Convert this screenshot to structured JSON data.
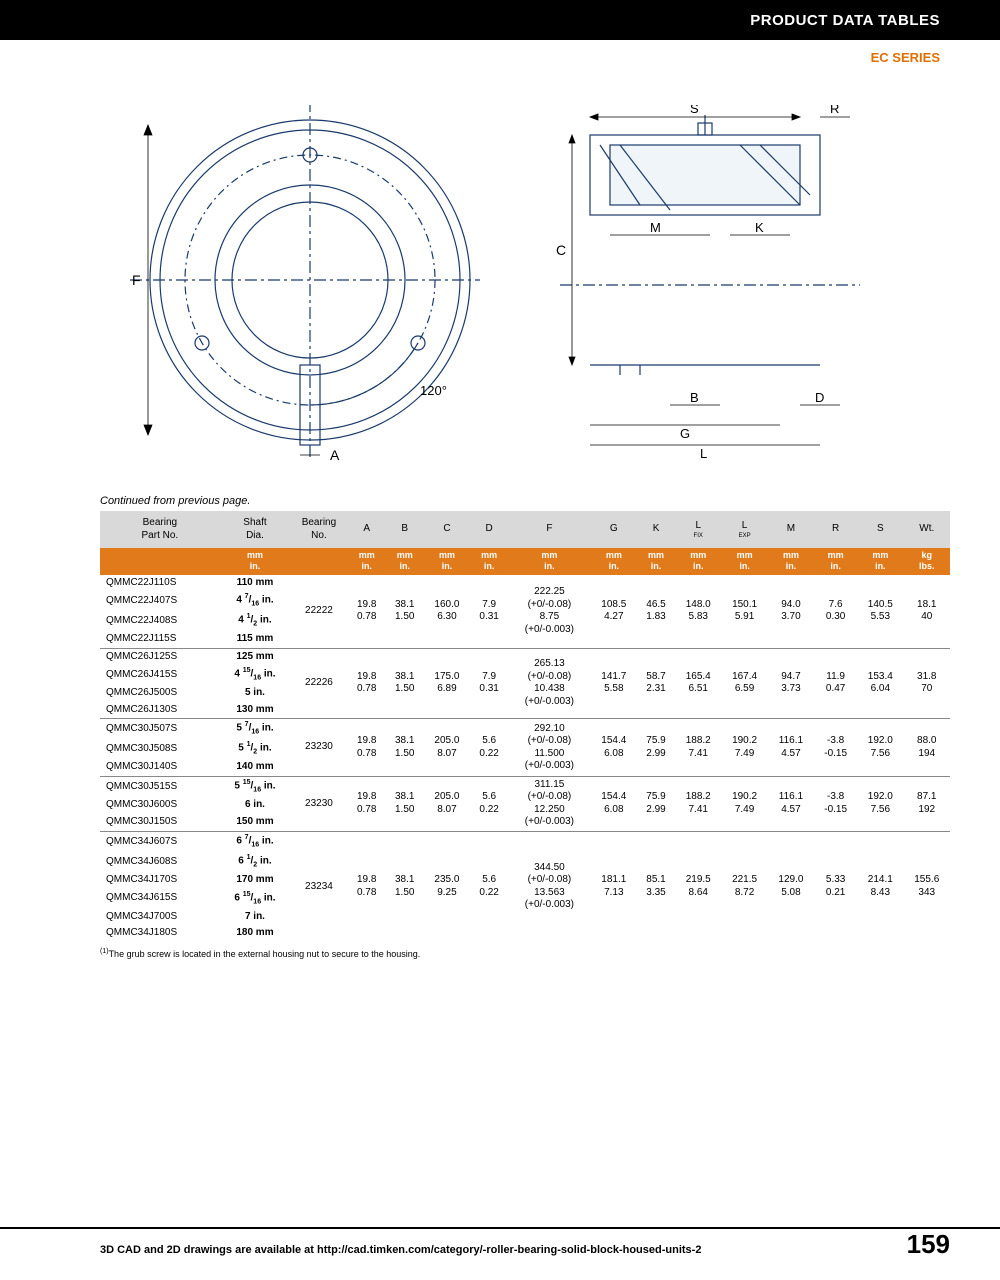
{
  "header": {
    "title": "PRODUCT DATA TABLES",
    "series": "EC SERIES"
  },
  "continued": "Continued from previous page.",
  "diagrams": {
    "left": {
      "labels": {
        "F": "F",
        "A": "A",
        "angle": "120°"
      }
    },
    "right": {
      "labels": {
        "C": "C",
        "B": "B",
        "D": "D",
        "G": "G",
        "L": "L",
        "S": "S",
        "R": "R",
        "M": "M",
        "K": "K"
      }
    }
  },
  "table": {
    "columns": [
      "Bearing\nPart No.",
      "Shaft\nDia.",
      "Bearing\nNo.",
      "A",
      "B",
      "C",
      "D",
      "F",
      "G",
      "K",
      "L FIX",
      "L EXP",
      "M",
      "R",
      "S",
      "Wt."
    ],
    "unit_row": [
      "",
      "mm\nin.",
      "",
      "mm\nin.",
      "mm\nin.",
      "mm\nin.",
      "mm\nin.",
      "mm\nin.",
      "mm\nin.",
      "mm\nin.",
      "mm\nin.",
      "mm\nin.",
      "mm\nin.",
      "mm\nin.",
      "mm\nin.",
      "kg\nlbs."
    ],
    "groups": [
      {
        "rows": [
          {
            "part": "QMMC22J110S",
            "shaft": "110 mm"
          },
          {
            "part": "QMMC22J407S",
            "shaft": "4 7/16 in."
          },
          {
            "part": "QMMC22J408S",
            "shaft": "4 1/2 in."
          },
          {
            "part": "QMMC22J115S",
            "shaft": "115 mm"
          }
        ],
        "bearing": "22222",
        "A": [
          "19.8",
          "0.78"
        ],
        "B": [
          "38.1",
          "1.50"
        ],
        "C": [
          "160.0",
          "6.30"
        ],
        "D": [
          "7.9",
          "0.31"
        ],
        "F": [
          "222.25",
          "(+0/-0.08)",
          "8.75",
          "(+0/-0.003)"
        ],
        "G": [
          "108.5",
          "4.27"
        ],
        "K": [
          "46.5",
          "1.83"
        ],
        "Lfix": [
          "148.0",
          "5.83"
        ],
        "Lexp": [
          "150.1",
          "5.91"
        ],
        "M": [
          "94.0",
          "3.70"
        ],
        "R": [
          "7.6",
          "0.30"
        ],
        "S": [
          "140.5",
          "5.53"
        ],
        "Wt": [
          "18.1",
          "40"
        ]
      },
      {
        "rows": [
          {
            "part": "QMMC26J125S",
            "shaft": "125 mm"
          },
          {
            "part": "QMMC26J415S",
            "shaft": "4 15/16 in."
          },
          {
            "part": "QMMC26J500S",
            "shaft": "5 in."
          },
          {
            "part": "QMMC26J130S",
            "shaft": "130 mm"
          }
        ],
        "bearing": "22226",
        "A": [
          "19.8",
          "0.78"
        ],
        "B": [
          "38.1",
          "1.50"
        ],
        "C": [
          "175.0",
          "6.89"
        ],
        "D": [
          "7.9",
          "0.31"
        ],
        "F": [
          "265.13",
          "(+0/-0.08)",
          "10.438",
          "(+0/-0.003)"
        ],
        "G": [
          "141.7",
          "5.58"
        ],
        "K": [
          "58.7",
          "2.31"
        ],
        "Lfix": [
          "165.4",
          "6.51"
        ],
        "Lexp": [
          "167.4",
          "6.59"
        ],
        "M": [
          "94.7",
          "3.73"
        ],
        "R": [
          "11.9",
          "0.47"
        ],
        "S": [
          "153.4",
          "6.04"
        ],
        "Wt": [
          "31.8",
          "70"
        ]
      },
      {
        "rows": [
          {
            "part": "QMMC30J507S",
            "shaft": "5 7/16 in."
          },
          {
            "part": "QMMC30J508S",
            "shaft": "5 1/2 in."
          },
          {
            "part": "QMMC30J140S",
            "shaft": "140 mm"
          }
        ],
        "bearing": "23230",
        "A": [
          "19.8",
          "0.78"
        ],
        "B": [
          "38.1",
          "1.50"
        ],
        "C": [
          "205.0",
          "8.07"
        ],
        "D": [
          "5.6",
          "0.22"
        ],
        "F": [
          "292.10",
          "(+0/-0.08)",
          "11.500",
          "(+0/-0.003)"
        ],
        "G": [
          "154.4",
          "6.08"
        ],
        "K": [
          "75.9",
          "2.99"
        ],
        "Lfix": [
          "188.2",
          "7.41"
        ],
        "Lexp": [
          "190.2",
          "7.49"
        ],
        "M": [
          "116.1",
          "4.57"
        ],
        "R": [
          "-3.8",
          "-0.15"
        ],
        "S": [
          "192.0",
          "7.56"
        ],
        "Wt": [
          "88.0",
          "194"
        ]
      },
      {
        "rows": [
          {
            "part": "QMMC30J515S",
            "shaft": "5 15/16 in."
          },
          {
            "part": "QMMC30J600S",
            "shaft": "6 in."
          },
          {
            "part": "QMMC30J150S",
            "shaft": "150 mm"
          }
        ],
        "bearing": "23230",
        "A": [
          "19.8",
          "0.78"
        ],
        "B": [
          "38.1",
          "1.50"
        ],
        "C": [
          "205.0",
          "8.07"
        ],
        "D": [
          "5.6",
          "0.22"
        ],
        "F": [
          "311.15",
          "(+0/-0.08)",
          "12.250",
          "(+0/-0.003)"
        ],
        "G": [
          "154.4",
          "6.08"
        ],
        "K": [
          "75.9",
          "2.99"
        ],
        "Lfix": [
          "188.2",
          "7.41"
        ],
        "Lexp": [
          "190.2",
          "7.49"
        ],
        "M": [
          "116.1",
          "4.57"
        ],
        "R": [
          "-3.8",
          "-0.15"
        ],
        "S": [
          "192.0",
          "7.56"
        ],
        "Wt": [
          "87.1",
          "192"
        ]
      },
      {
        "rows": [
          {
            "part": "QMMC34J607S",
            "shaft": "6 7/16 in."
          },
          {
            "part": "QMMC34J608S",
            "shaft": "6 1/2 in."
          },
          {
            "part": "QMMC34J170S",
            "shaft": "170 mm"
          },
          {
            "part": "QMMC34J615S",
            "shaft": "6 15/16 in."
          },
          {
            "part": "QMMC34J700S",
            "shaft": "7 in."
          },
          {
            "part": "QMMC34J180S",
            "shaft": "180 mm"
          }
        ],
        "bearing": "23234",
        "A": [
          "19.8",
          "0.78"
        ],
        "B": [
          "38.1",
          "1.50"
        ],
        "C": [
          "235.0",
          "9.25"
        ],
        "D": [
          "5.6",
          "0.22"
        ],
        "F": [
          "344.50",
          "(+0/-0.08)",
          "13.563",
          "(+0/-0.003)"
        ],
        "G": [
          "181.1",
          "7.13"
        ],
        "K": [
          "85.1",
          "3.35"
        ],
        "Lfix": [
          "219.5",
          "8.64"
        ],
        "Lexp": [
          "221.5",
          "8.72"
        ],
        "M": [
          "129.0",
          "5.08"
        ],
        "R": [
          "5.33",
          "0.21"
        ],
        "S": [
          "214.1",
          "8.43"
        ],
        "Wt": [
          "155.6",
          "343"
        ]
      }
    ]
  },
  "footnote": "(1)The grub screw is located in the external housing nut to secure to the housing.",
  "footer": {
    "text": "3D CAD and 2D drawings are available at http://cad.timken.com/category/-roller-bearing-solid-block-housed-units-2",
    "page": "159"
  },
  "colors": {
    "accent": "#e07a1a",
    "header_bg": "#d9d9d9",
    "orange_row": "#e07a1a"
  }
}
